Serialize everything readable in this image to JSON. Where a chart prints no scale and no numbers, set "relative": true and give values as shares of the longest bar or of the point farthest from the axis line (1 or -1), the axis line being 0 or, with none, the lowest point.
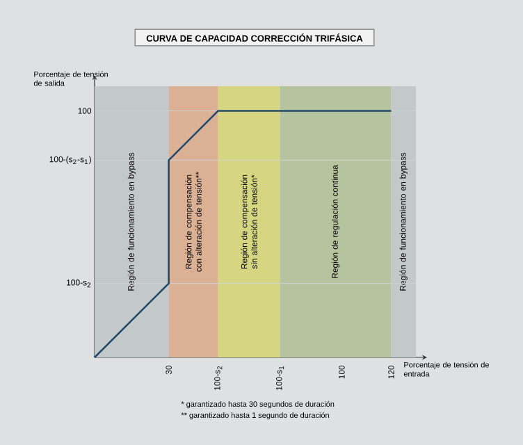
{
  "chart_data": {
    "type": "line",
    "title": "CURVA DE CAPACIDAD CORRECCIÓN TRIFÁSICA",
    "xlabel": "Porcentaje de tensión de entrada",
    "ylabel": "Porcentaje de tensión de salida",
    "x": [
      0,
      30,
      30,
      50,
      120
    ],
    "series": [
      {
        "color": "#1f4a6b",
        "values": [
          0,
          0.3,
          0.8,
          1,
          1
        ]
      }
    ],
    "relative": true,
    "xlim": [
      0,
      130
    ],
    "xticks": [
      30,
      {
        "value": 50,
        "label": "100-s$_{2}$"
      },
      {
        "value": 75,
        "label": "100-s$_{1}$"
      },
      100,
      120
    ],
    "ref_lines": [
      {
        "axis": "y",
        "value": 0.3,
        "label": "100-s$_{2}$",
        "color": "#d0d2d3"
      },
      {
        "axis": "y",
        "value": 0.8,
        "label": "100-(s$_{2}$-s$_{1}$)",
        "color": "#d0d2d3"
      },
      {
        "axis": "y",
        "value": 1,
        "label": "100",
        "color": "#d0d2d3"
      }
    ],
    "bands": [
      {
        "axis": "x",
        "from": 0,
        "to": 30,
        "label": "Región de funcionamiento en bypass",
        "color": "#c3c8c9"
      },
      {
        "axis": "x",
        "from": 30,
        "to": 50,
        "label": "Región de compensación con alteración de tensión**",
        "color": "#dbb195"
      },
      {
        "axis": "x",
        "from": 50,
        "to": 75,
        "label": "Región de compensación sin alteración de tensión*",
        "color": "#d6d682"
      },
      {
        "axis": "x",
        "from": 75,
        "to": 120,
        "label": "Región de regulación continua",
        "color": "#b5c49f"
      },
      {
        "axis": "x",
        "from": 120,
        "to": 130,
        "label": "Región de funcionamiento en bypass",
        "color": "#c3c8c9"
      }
    ],
    "annotations": [
      "* garantizado hasta 30 segundos de duración",
      "** garantizado hasta 1 segundo de duración"
    ]
  }
}
